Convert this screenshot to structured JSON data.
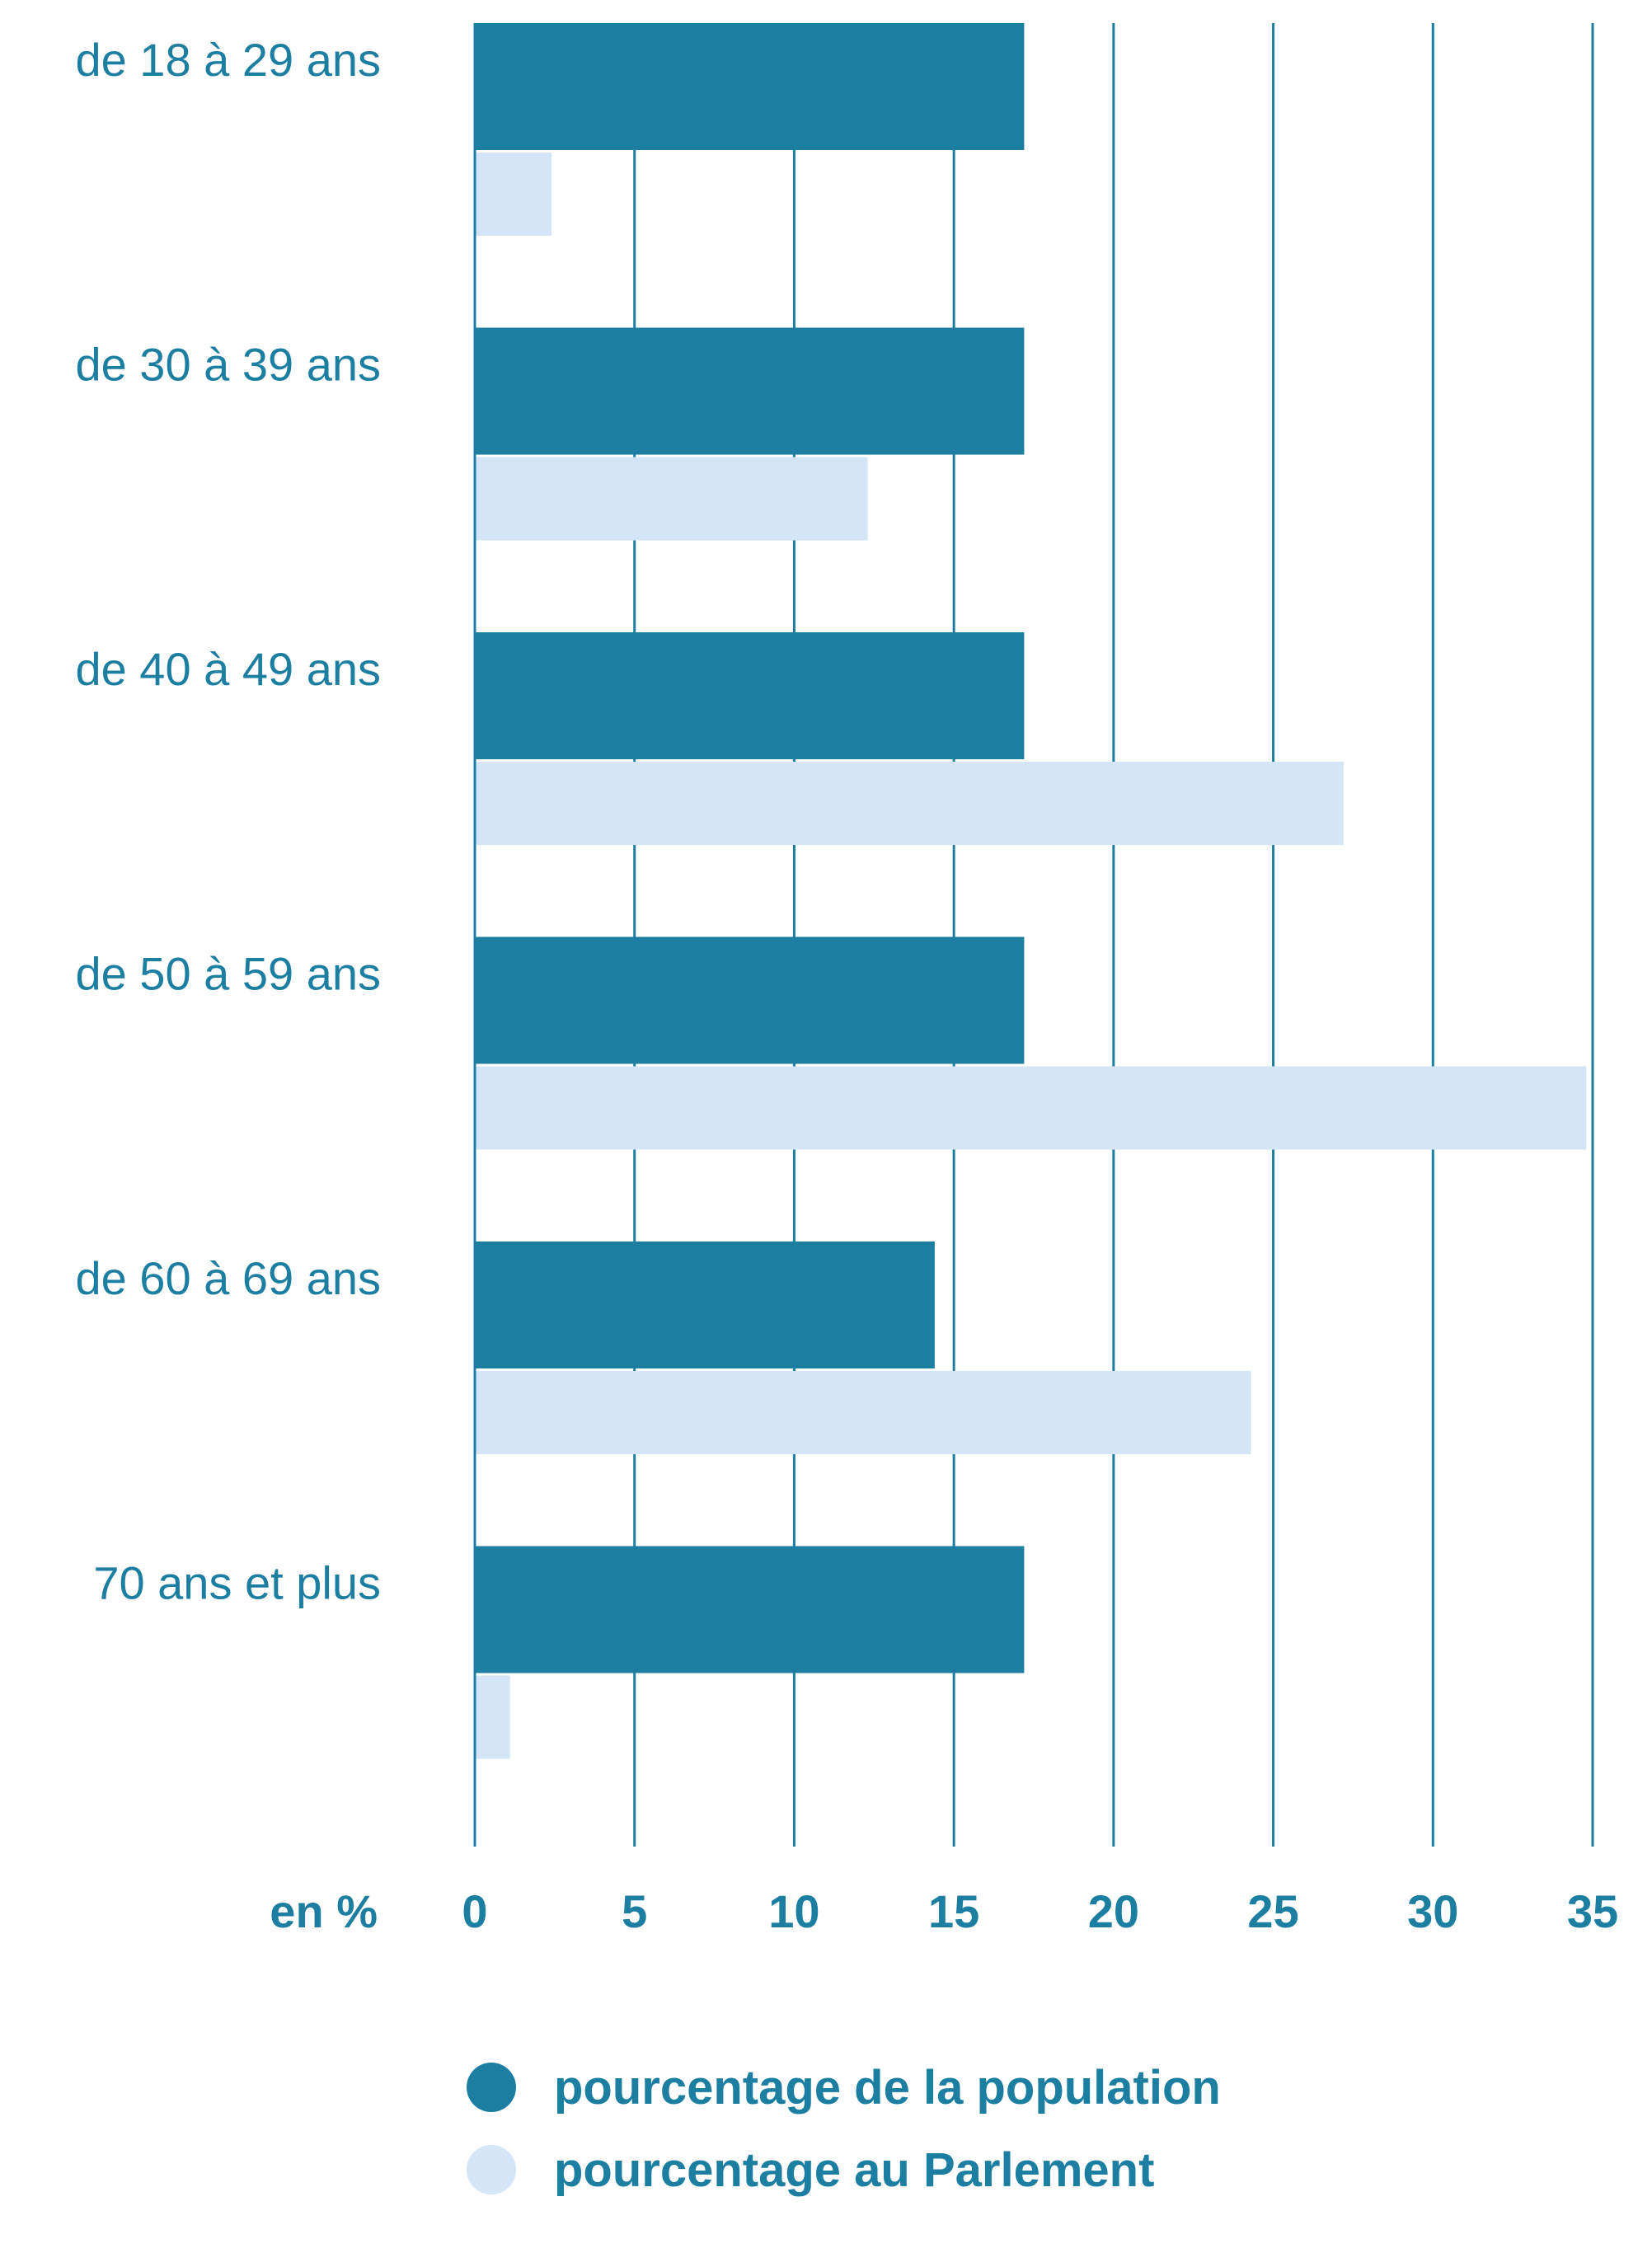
{
  "chart_data": {
    "type": "bar",
    "orientation": "horizontal",
    "categories": [
      "de 18 à 29 ans",
      "de 30 à 39 ans",
      "de 40 à 49 ans",
      "de 50 à 59 ans",
      "de 60 à 69 ans",
      "70 ans et plus"
    ],
    "series": [
      {
        "name": "pourcentage de la population",
        "color": "#1c7ea0",
        "values": [
          17.2,
          17.2,
          17.2,
          17.2,
          14.4,
          17.2
        ]
      },
      {
        "name": "pourcentage au Parlement",
        "color": "#d3e5f6",
        "values": [
          2.4,
          12.3,
          27.2,
          34.8,
          24.3,
          1.1
        ]
      }
    ],
    "xlabel": "en %",
    "ylabel": "",
    "xlim": [
      0,
      35
    ],
    "xticks": [
      0,
      5,
      10,
      15,
      20,
      25,
      30,
      35
    ],
    "grid": "vertical",
    "legend_position": "bottom",
    "text_color": "#1c7ea0",
    "grid_color": "#1c7ea0"
  }
}
